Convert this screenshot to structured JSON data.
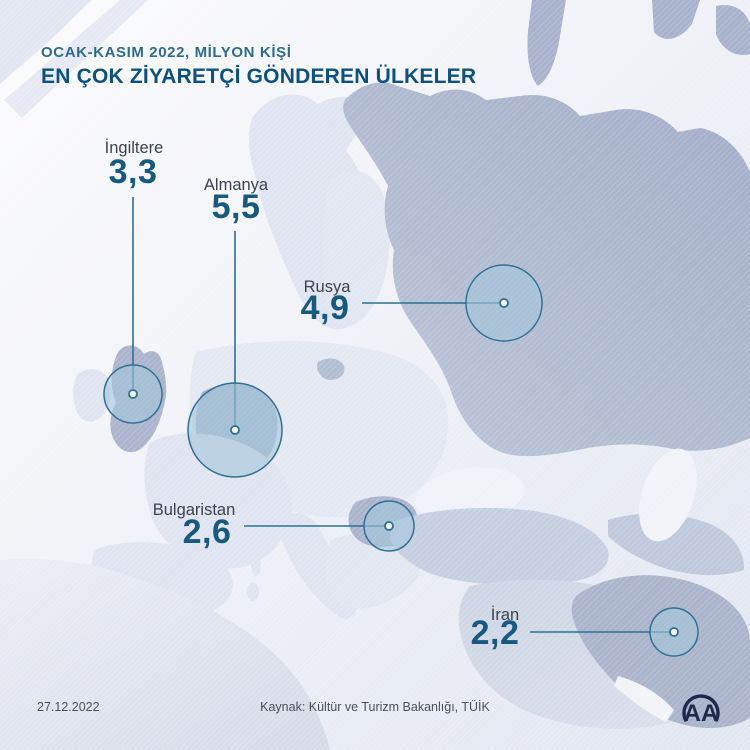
{
  "header": {
    "kicker": "OCAK-KASIM 2022, MİLYON KİŞİ",
    "title": "EN ÇOK ZİYARETÇİ GÖNDEREN ÜLKELER"
  },
  "countries": [
    {
      "name": "İngiltere",
      "value": "3,3"
    },
    {
      "name": "Almanya",
      "value": "5,5"
    },
    {
      "name": "Rusya",
      "value": "4,9"
    },
    {
      "name": "Bulgaristan",
      "value": "2,6"
    },
    {
      "name": "İran",
      "value": "2,2"
    }
  ],
  "footer": {
    "date": "27.12.2022",
    "source": "Kaynak: Kültür ve Turizm Bakanlığı, TÜİK"
  },
  "logo_text": "AA",
  "colors": {
    "title": "#0d5180",
    "kicker": "#2e6b92",
    "value_text": "#17597f",
    "label_text": "#3d434e",
    "bubble_stroke": "#2e7094",
    "bubble_fill": "#a3c7db",
    "land_light": "#dfe4f0",
    "land_dark": "#aab4cb",
    "sea": "#f2f3f8",
    "footer_text": "#4a5059",
    "logo": "#1c2b4d"
  },
  "chart_data": {
    "type": "scatter",
    "subtype": "proportional-symbol-bubble-map",
    "title": "EN ÇOK ZİYARETÇİ GÖNDEREN ÜLKELER",
    "subtitle": "OCAK-KASIM 2022, MİLYON KİŞİ",
    "unit": "milyon kişi",
    "categories": [
      "İngiltere",
      "Almanya",
      "Rusya",
      "Bulgaristan",
      "İran"
    ],
    "values": [
      3.3,
      5.5,
      4.9,
      2.6,
      2.2
    ],
    "legend_position": "none",
    "source": "Kaynak: Kültür ve Turizm Bakanlığı, TÜİK",
    "date": "27.12.2022"
  }
}
